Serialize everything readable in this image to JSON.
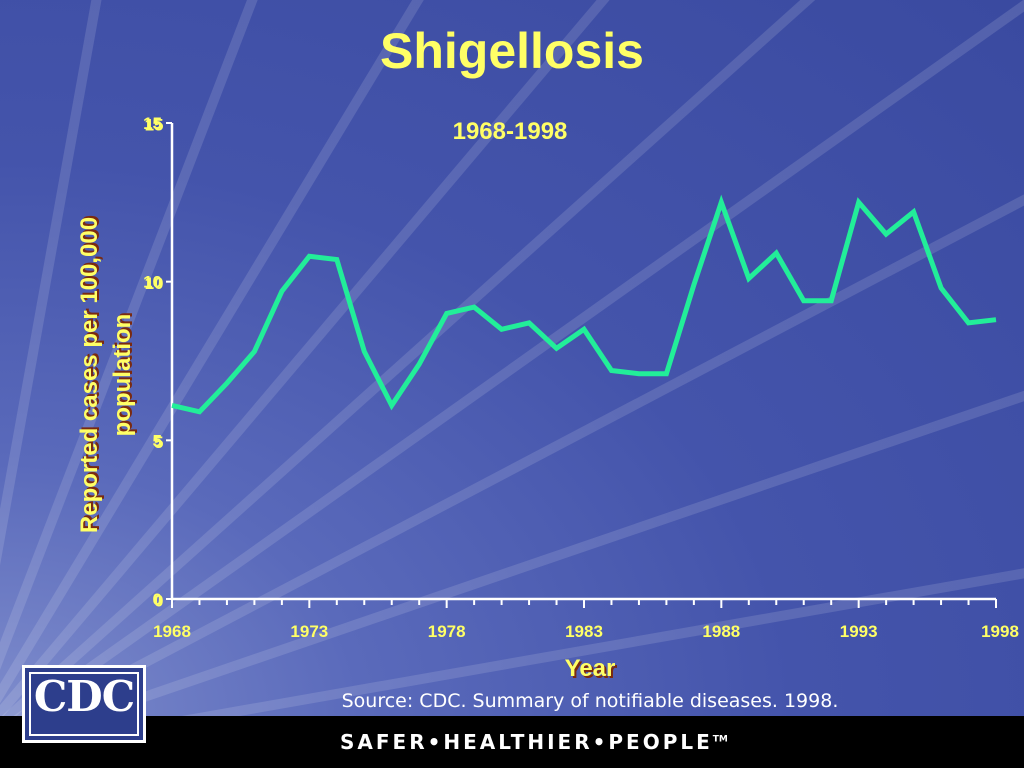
{
  "slide": {
    "source": "Source:  CDC. Summary of notifiable diseases. 1998.",
    "footer_tagline": "SAFER•HEALTHIER•PEOPLE",
    "footer_trademark": "TM",
    "logo_text": "CDC"
  },
  "colors": {
    "line": "#22ee99",
    "text": "#ffff66",
    "axis": "#ffffff"
  },
  "chart_data": {
    "type": "line",
    "title": "Shigellosis",
    "subtitle": "1968-1998",
    "xlabel": "Year",
    "ylabel": "Reported cases per 100,000 population",
    "xlim": [
      1968,
      1998
    ],
    "ylim": [
      0,
      15
    ],
    "x_ticks": [
      1968,
      1973,
      1978,
      1983,
      1988,
      1993,
      1998
    ],
    "y_ticks": [
      0,
      5,
      10,
      15
    ],
    "grid": false,
    "series": [
      {
        "x": [
          1968,
          1969,
          1970,
          1971,
          1972,
          1973,
          1974,
          1975,
          1976,
          1977,
          1978,
          1979,
          1980,
          1981,
          1982,
          1983,
          1984,
          1985,
          1986,
          1987,
          1988,
          1989,
          1990,
          1991,
          1992,
          1993,
          1994,
          1995,
          1996,
          1997,
          1998
        ],
        "values": [
          6.1,
          5.9,
          6.8,
          7.8,
          9.7,
          10.8,
          10.7,
          7.8,
          6.1,
          7.4,
          9.0,
          9.2,
          8.5,
          8.7,
          7.9,
          8.5,
          7.2,
          7.1,
          7.1,
          9.9,
          12.5,
          10.1,
          10.9,
          9.4,
          9.4,
          12.5,
          11.5,
          12.2,
          9.8,
          8.7,
          8.8
        ]
      }
    ]
  }
}
